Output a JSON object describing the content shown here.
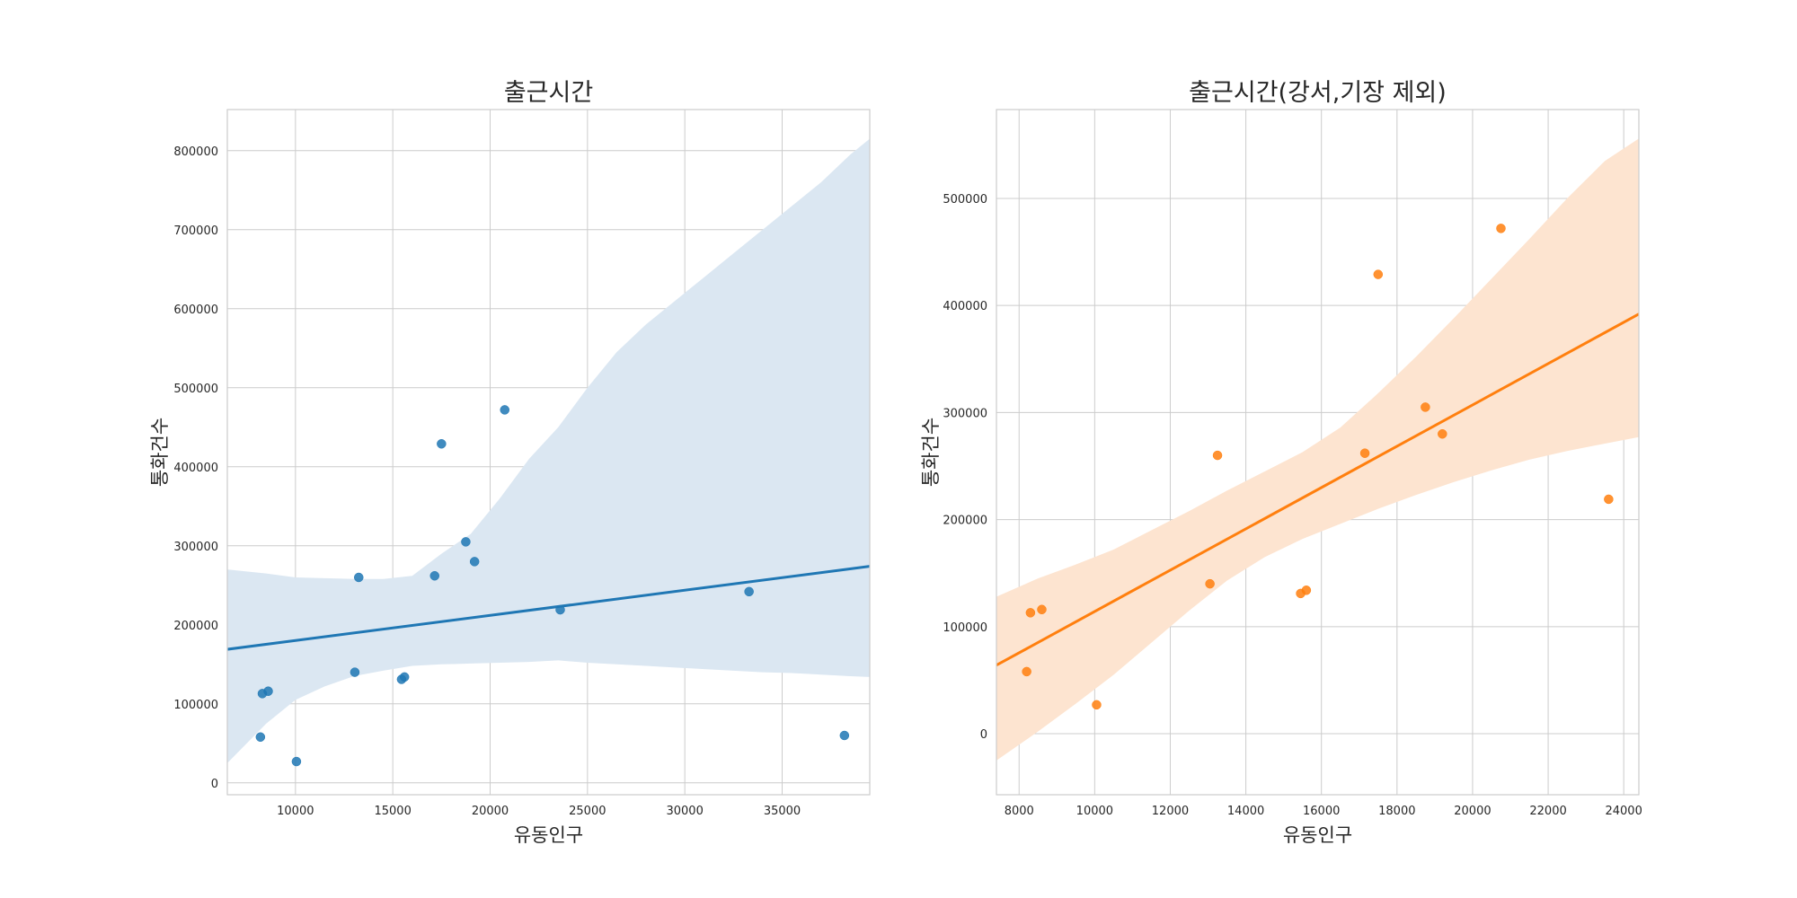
{
  "chart_data": [
    {
      "type": "scatter",
      "title": "출근시간",
      "xlabel": "유동인구",
      "ylabel": "통화건수",
      "xlim": [
        6500,
        39500
      ],
      "ylim": [
        -15000,
        852000
      ],
      "xticks": [
        10000,
        15000,
        20000,
        25000,
        30000,
        35000
      ],
      "yticks": [
        0,
        100000,
        200000,
        300000,
        400000,
        500000,
        600000,
        700000,
        800000
      ],
      "grid": true,
      "color": "#1f77b4",
      "band_color": "#dbe7f2",
      "series": [
        {
          "x": [
            8200,
            8300,
            8600,
            10050,
            13050,
            13250,
            15450,
            15600,
            17150,
            17500,
            18750,
            19200,
            20750,
            23600,
            33300,
            38200
          ],
          "y": [
            58000,
            113000,
            116000,
            27000,
            140000,
            260000,
            131000,
            134000,
            262000,
            429000,
            305000,
            280000,
            472000,
            219000,
            242000,
            60000
          ]
        }
      ],
      "regression": {
        "x": [
          6500,
          39500
        ],
        "y": [
          169000,
          274000
        ]
      },
      "confidence_band": {
        "x": [
          6500,
          8500,
          10000,
          11500,
          13000,
          14500,
          16000,
          17500,
          19000,
          20500,
          22000,
          23500,
          25000,
          26500,
          28000,
          29500,
          31000,
          32500,
          34000,
          35500,
          37000,
          38500,
          39500
        ],
        "lower": [
          25000,
          75000,
          105000,
          122000,
          135000,
          142000,
          148000,
          150000,
          151000,
          152000,
          153000,
          155000,
          152000,
          150000,
          148000,
          146000,
          144000,
          142000,
          140000,
          139000,
          137000,
          135000,
          134000
        ],
        "upper": [
          270000,
          265000,
          260000,
          259000,
          258000,
          258000,
          262000,
          290000,
          315000,
          360000,
          410000,
          450000,
          500000,
          545000,
          580000,
          610000,
          640000,
          670000,
          700000,
          730000,
          760000,
          795000,
          815000
        ]
      }
    },
    {
      "type": "scatter",
      "title": "출근시간(강서,기장 제외)",
      "xlabel": "유동인구",
      "ylabel": "통화건수",
      "xlim": [
        7400,
        24400
      ],
      "ylim": [
        -57000,
        583000
      ],
      "xticks": [
        8000,
        10000,
        12000,
        14000,
        16000,
        18000,
        20000,
        22000,
        24000
      ],
      "yticks": [
        0,
        100000,
        200000,
        300000,
        400000,
        500000
      ],
      "grid": true,
      "color": "#ff7f0e",
      "band_color": "#fde4d0",
      "series": [
        {
          "x": [
            8200,
            8300,
            8600,
            10050,
            13050,
            13250,
            15450,
            15600,
            17150,
            17500,
            18750,
            19200,
            20750,
            23600
          ],
          "y": [
            58000,
            113000,
            116000,
            27000,
            140000,
            260000,
            131000,
            134000,
            262000,
            429000,
            305000,
            280000,
            472000,
            219000
          ]
        }
      ],
      "regression": {
        "x": [
          7400,
          24400
        ],
        "y": [
          64000,
          392000
        ]
      },
      "confidence_band": {
        "x": [
          7400,
          8500,
          9500,
          10500,
          11500,
          12500,
          13500,
          14500,
          15500,
          16500,
          17500,
          18500,
          19500,
          20500,
          21500,
          22500,
          23500,
          24400
        ],
        "lower": [
          -25000,
          2000,
          28000,
          55000,
          85000,
          115000,
          143000,
          165000,
          182000,
          196000,
          210000,
          223000,
          235000,
          246000,
          256000,
          264000,
          271000,
          277000
        ],
        "upper": [
          128000,
          145000,
          158000,
          172000,
          190000,
          208000,
          227000,
          245000,
          263000,
          286000,
          318000,
          352000,
          388000,
          425000,
          462000,
          500000,
          535000,
          556000
        ]
      }
    }
  ]
}
